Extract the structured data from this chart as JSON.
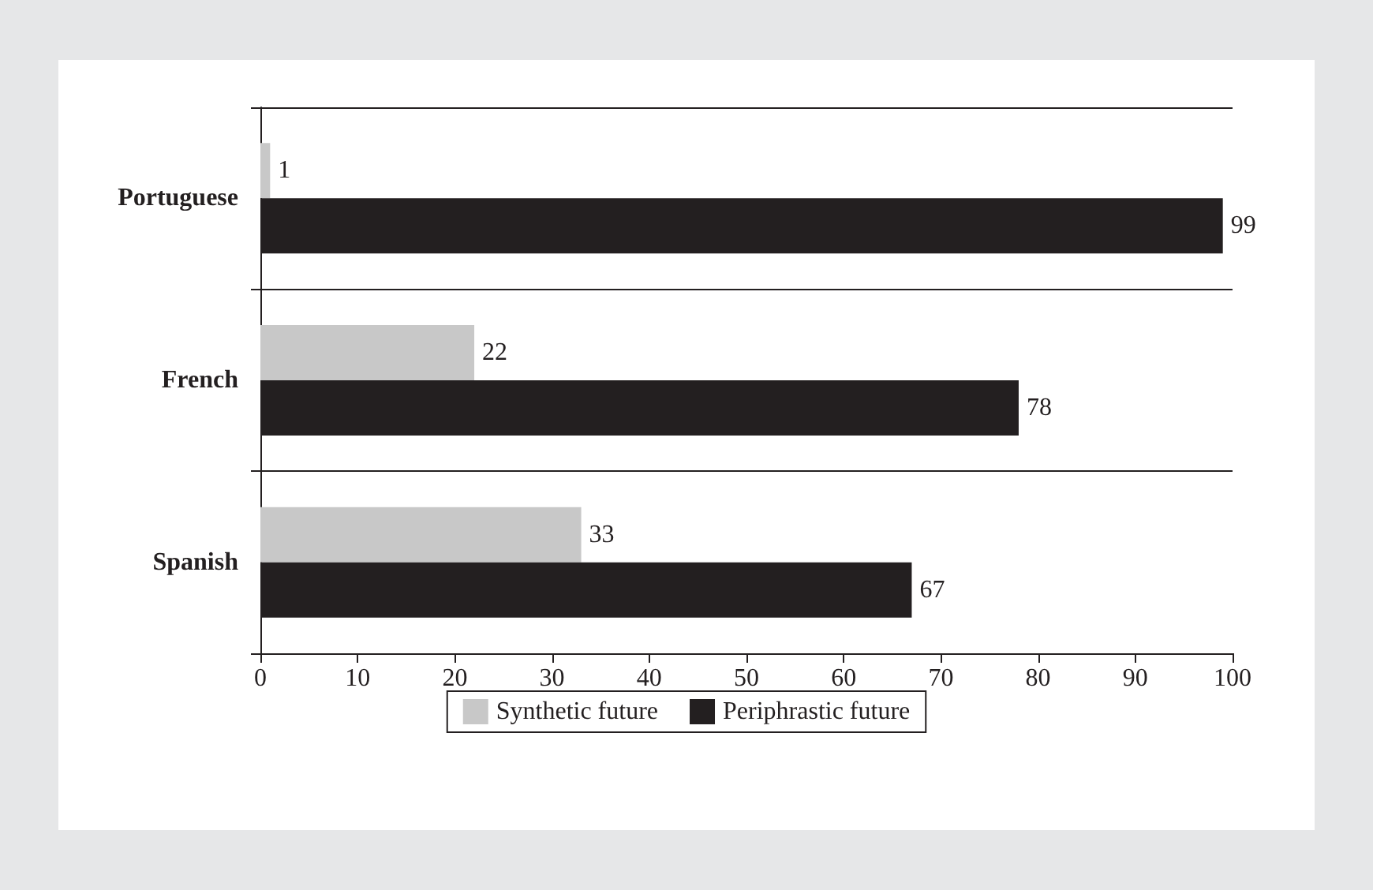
{
  "chart_data": {
    "type": "bar",
    "orientation": "horizontal",
    "categories": [
      "Portuguese",
      "French",
      "Spanish"
    ],
    "series": [
      {
        "name": "Synthetic future",
        "color": "#c8c8c8",
        "values": [
          1,
          22,
          33
        ]
      },
      {
        "name": "Periphrastic future",
        "color": "#231f20",
        "values": [
          99,
          78,
          67
        ]
      }
    ],
    "xlim": [
      0,
      100
    ],
    "xticks": [
      0,
      10,
      20,
      30,
      40,
      50,
      60,
      70,
      80,
      90,
      100
    ],
    "grid": "y",
    "legend": "bottom",
    "data_labels": true
  }
}
